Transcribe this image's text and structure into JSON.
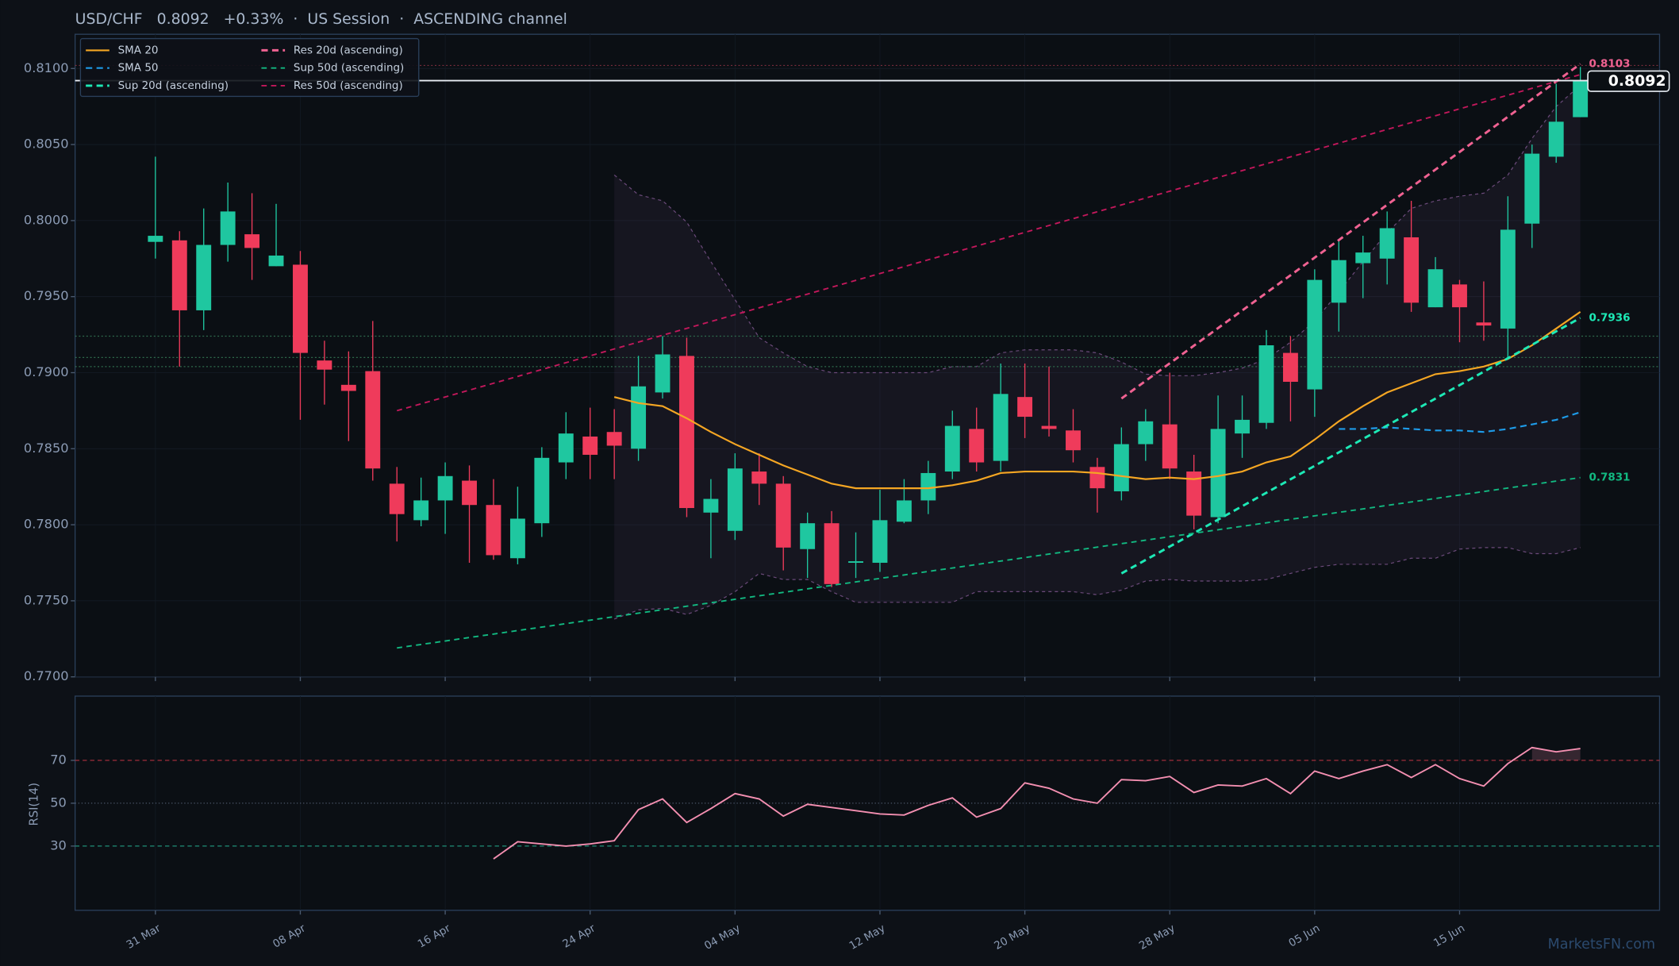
{
  "chart_data": [
    {
      "type": "candlestick",
      "title": "USD/CHF   0.8092   +0.33%  ·  US Session  ·  ASCENDING channel",
      "annotation": "MarketsFN.com",
      "categories": [
        "31 Mar",
        null,
        null,
        null,
        null,
        null,
        "08 Apr",
        null,
        null,
        null,
        null,
        null,
        "16 Apr",
        null,
        null,
        null,
        null,
        null,
        "24 Apr",
        null,
        null,
        null,
        null,
        null,
        "04 May",
        null,
        null,
        null,
        null,
        null,
        "12 May",
        null,
        null,
        null,
        null,
        null,
        "20 May",
        null,
        null,
        null,
        null,
        null,
        "28 May",
        null,
        null,
        null,
        null,
        null,
        "05 Jun",
        null,
        null,
        null,
        null,
        null,
        "15 Jun",
        null,
        null,
        null,
        null,
        null
      ],
      "open": [
        0.7986,
        0.7987,
        0.7941,
        0.7984,
        0.7991,
        0.797,
        0.7971,
        0.7908,
        0.7892,
        0.7901,
        0.7827,
        0.7803,
        0.7816,
        0.7829,
        0.7813,
        0.7778,
        0.7801,
        0.7841,
        0.7858,
        0.7861,
        0.785,
        0.7887,
        0.7911,
        0.7808,
        0.7796,
        0.7835,
        0.7827,
        0.7784,
        0.7801,
        0.7775,
        0.7775,
        0.7802,
        0.7816,
        0.7835,
        0.7863,
        0.7842,
        0.7884,
        0.7865,
        0.7862,
        0.7838,
        0.7822,
        0.7853,
        0.7866,
        0.7835,
        0.7805,
        0.786,
        0.7867,
        0.7913,
        0.7889,
        0.7946,
        0.7972,
        0.7975,
        0.7989,
        0.7943,
        0.7958,
        0.7933,
        0.7929,
        0.7998,
        0.8042,
        0.8068
      ],
      "high": [
        0.8042,
        0.7993,
        0.8008,
        0.8025,
        0.8018,
        0.8011,
        0.798,
        0.7921,
        0.7914,
        0.7934,
        0.7838,
        0.7831,
        0.7841,
        0.7839,
        0.783,
        0.7825,
        0.7851,
        0.7874,
        0.7877,
        0.7876,
        0.7911,
        0.7924,
        0.7923,
        0.783,
        0.7847,
        0.7847,
        0.7832,
        0.7808,
        0.7809,
        0.7795,
        0.7823,
        0.783,
        0.7842,
        0.7875,
        0.7877,
        0.7906,
        0.7906,
        0.7904,
        0.7876,
        0.7844,
        0.7864,
        0.7876,
        0.79,
        0.7846,
        0.7885,
        0.7885,
        0.7928,
        0.7924,
        0.7968,
        0.7987,
        0.799,
        0.8006,
        0.8013,
        0.7976,
        0.7961,
        0.796,
        0.8016,
        0.805,
        0.809,
        0.8101
      ],
      "low": [
        0.7975,
        0.7904,
        0.7928,
        0.7973,
        0.7961,
        0.797,
        0.7869,
        0.7879,
        0.7855,
        0.7829,
        0.7789,
        0.7799,
        0.7794,
        0.7775,
        0.7777,
        0.7774,
        0.7792,
        0.783,
        0.783,
        0.783,
        0.7842,
        0.7883,
        0.7805,
        0.7778,
        0.779,
        0.7813,
        0.777,
        0.7765,
        0.7759,
        0.7765,
        0.7769,
        0.7801,
        0.7807,
        0.783,
        0.7835,
        0.7835,
        0.7857,
        0.7858,
        0.7841,
        0.7808,
        0.7816,
        0.7842,
        0.783,
        0.7797,
        0.7801,
        0.7844,
        0.7863,
        0.7868,
        0.7871,
        0.7927,
        0.7949,
        0.7958,
        0.794,
        0.7943,
        0.792,
        0.7921,
        0.791,
        0.7982,
        0.8038,
        0.8068
      ],
      "close": [
        0.799,
        0.7941,
        0.7984,
        0.8006,
        0.7982,
        0.7977,
        0.7913,
        0.7902,
        0.7888,
        0.7837,
        0.7807,
        0.7816,
        0.7832,
        0.7813,
        0.778,
        0.7804,
        0.7844,
        0.786,
        0.7846,
        0.7852,
        0.7891,
        0.7912,
        0.7811,
        0.7817,
        0.7837,
        0.7827,
        0.7785,
        0.7801,
        0.7761,
        0.7776,
        0.7803,
        0.7816,
        0.7834,
        0.7865,
        0.7841,
        0.7886,
        0.7871,
        0.7863,
        0.7849,
        0.7824,
        0.7853,
        0.7868,
        0.7837,
        0.7806,
        0.7863,
        0.7869,
        0.7918,
        0.7894,
        0.7961,
        0.7974,
        0.7979,
        0.7995,
        0.7946,
        0.7968,
        0.7943,
        0.7931,
        0.7994,
        0.8044,
        0.8065,
        0.8092
      ],
      "up_color": "#1fc7a0",
      "down_color": "#ef3b5b",
      "ylim": [
        0.77,
        0.81225
      ],
      "yticks": [
        {
          "value": 0.77,
          "label": "0.7700"
        },
        {
          "value": 0.775,
          "label": "0.7750"
        },
        {
          "value": 0.78,
          "label": "0.7800"
        },
        {
          "value": 0.785,
          "label": "0.7850"
        },
        {
          "value": 0.79,
          "label": "0.7900"
        },
        {
          "value": 0.795,
          "label": "0.7950"
        },
        {
          "value": 0.8,
          "label": "0.8000"
        },
        {
          "value": 0.805,
          "label": "0.8050"
        },
        {
          "value": 0.81,
          "label": "0.8100"
        }
      ],
      "grid": true,
      "legend": "upper left",
      "last_price": 0.8092,
      "levels": [
        {
          "value": 0.8102,
          "color": "#7a2d3c"
        },
        {
          "value": 0.7924,
          "color": "#2e6b4c"
        },
        {
          "value": 0.791,
          "color": "#2e6b4c"
        },
        {
          "value": 0.7904,
          "color": "#2e6b4c"
        }
      ],
      "band": {
        "color": "#6b4a7a",
        "upper": [
          null,
          null,
          null,
          null,
          null,
          null,
          null,
          null,
          null,
          null,
          null,
          null,
          null,
          null,
          null,
          null,
          null,
          null,
          null,
          0.803,
          0.8017,
          0.8013,
          0.7999,
          0.7973,
          0.7948,
          0.7923,
          0.7913,
          0.7904,
          0.79,
          0.79,
          0.79,
          0.79,
          0.79,
          0.7904,
          0.7904,
          0.7913,
          0.7915,
          0.7915,
          0.7915,
          0.7913,
          0.7907,
          0.7899,
          0.7898,
          0.7898,
          0.79,
          0.7903,
          0.7909,
          0.792,
          0.7934,
          0.7953,
          0.7973,
          0.7992,
          0.8008,
          0.8013,
          0.8016,
          0.8018,
          0.803,
          0.8054,
          0.8075,
          0.8089
        ],
        "lower": [
          null,
          null,
          null,
          null,
          null,
          null,
          null,
          null,
          null,
          null,
          null,
          null,
          null,
          null,
          null,
          null,
          null,
          null,
          null,
          0.7738,
          0.7744,
          0.7745,
          0.7741,
          0.7747,
          0.7756,
          0.7768,
          0.7764,
          0.7764,
          0.7756,
          0.7749,
          0.7749,
          0.7749,
          0.7749,
          0.7749,
          0.7756,
          0.7756,
          0.7756,
          0.7756,
          0.7756,
          0.7754,
          0.7757,
          0.7763,
          0.7764,
          0.7763,
          0.7763,
          0.7763,
          0.7764,
          0.7768,
          0.7772,
          0.7774,
          0.7774,
          0.7774,
          0.7778,
          0.7778,
          0.7784,
          0.7785,
          0.7785,
          0.7781,
          0.7781,
          0.7785
        ]
      },
      "series": [
        {
          "name": "SMA 20",
          "color": "#f5a623",
          "width": 1.6,
          "dash": "none",
          "values": [
            null,
            null,
            null,
            null,
            null,
            null,
            null,
            null,
            null,
            null,
            null,
            null,
            null,
            null,
            null,
            null,
            null,
            null,
            null,
            0.7884,
            0.788,
            0.7878,
            0.787,
            0.7861,
            0.7853,
            0.7846,
            0.7839,
            0.7833,
            0.7827,
            0.7824,
            0.7824,
            0.7824,
            0.7824,
            0.7826,
            0.7829,
            0.7834,
            0.7835,
            0.7835,
            0.7835,
            0.7834,
            0.7832,
            0.783,
            0.7831,
            0.783,
            0.7832,
            0.7835,
            0.7841,
            0.7845,
            0.7856,
            0.7868,
            0.7878,
            0.7887,
            0.7893,
            0.7899,
            0.7901,
            0.7904,
            0.7909,
            0.7918,
            0.7929,
            0.794
          ]
        },
        {
          "name": "SMA 50",
          "color": "#1e9be8",
          "width": 1.6,
          "dash": "6,4",
          "values": [
            null,
            null,
            null,
            null,
            null,
            null,
            null,
            null,
            null,
            null,
            null,
            null,
            null,
            null,
            null,
            null,
            null,
            null,
            null,
            null,
            null,
            null,
            null,
            null,
            null,
            null,
            null,
            null,
            null,
            null,
            null,
            null,
            null,
            null,
            null,
            null,
            null,
            null,
            null,
            null,
            null,
            null,
            null,
            null,
            null,
            null,
            null,
            null,
            null,
            0.7863,
            0.7863,
            0.7864,
            0.7863,
            0.7862,
            0.7862,
            0.7861,
            0.7863,
            0.7866,
            0.7869,
            0.7874
          ]
        },
        {
          "name": "Sup 20d (ascending)",
          "color": "#1de9b6",
          "width": 2.2,
          "dash": "6,4",
          "label_end": true,
          "x": [
            40,
            59
          ],
          "values": [
            0.7768,
            0.7936
          ]
        },
        {
          "name": "Res 20d (ascending)",
          "color": "#f06292",
          "width": 2.2,
          "dash": "6,4",
          "label_end": true,
          "x": [
            40,
            59
          ],
          "values": [
            0.7883,
            0.8103
          ]
        },
        {
          "name": "Sup 50d (ascending)",
          "color": "#12b981",
          "width": 1.4,
          "dash": "5,4",
          "label_end": true,
          "x": [
            10,
            59
          ],
          "values": [
            0.7719,
            0.7831
          ]
        },
        {
          "name": "Res 50d (ascending)",
          "color": "#c2185b",
          "width": 1.4,
          "dash": "5,4",
          "label_end": false,
          "x": [
            10,
            59
          ],
          "values": [
            0.7875,
            0.8096
          ]
        }
      ]
    },
    {
      "type": "line",
      "ylabel": "RSI(14)",
      "color": "#f48fb1",
      "ylim": [
        0,
        100
      ],
      "yticks": [
        30,
        50,
        70
      ],
      "hlines": [
        {
          "value": 70,
          "color": "#b0323f",
          "dash": "4,3"
        },
        {
          "value": 50,
          "color": "#4a5568",
          "dash": "1,2"
        },
        {
          "value": 30,
          "color": "#1f8f77",
          "dash": "4,3"
        }
      ],
      "values": [
        null,
        null,
        null,
        null,
        null,
        null,
        null,
        null,
        null,
        null,
        null,
        null,
        null,
        null,
        24,
        32,
        31,
        30,
        31,
        32.5,
        47,
        52,
        41,
        47.5,
        54.5,
        52,
        44,
        49.5,
        48,
        46.5,
        45,
        44.5,
        49,
        52.5,
        43.5,
        47.5,
        59.5,
        57,
        52,
        50,
        61,
        60.5,
        62.5,
        55,
        58.5,
        58,
        61.5,
        54.5,
        65,
        61.5,
        65,
        68,
        62,
        68,
        61.5,
        58,
        68.5,
        76,
        74,
        75.5
      ]
    }
  ]
}
